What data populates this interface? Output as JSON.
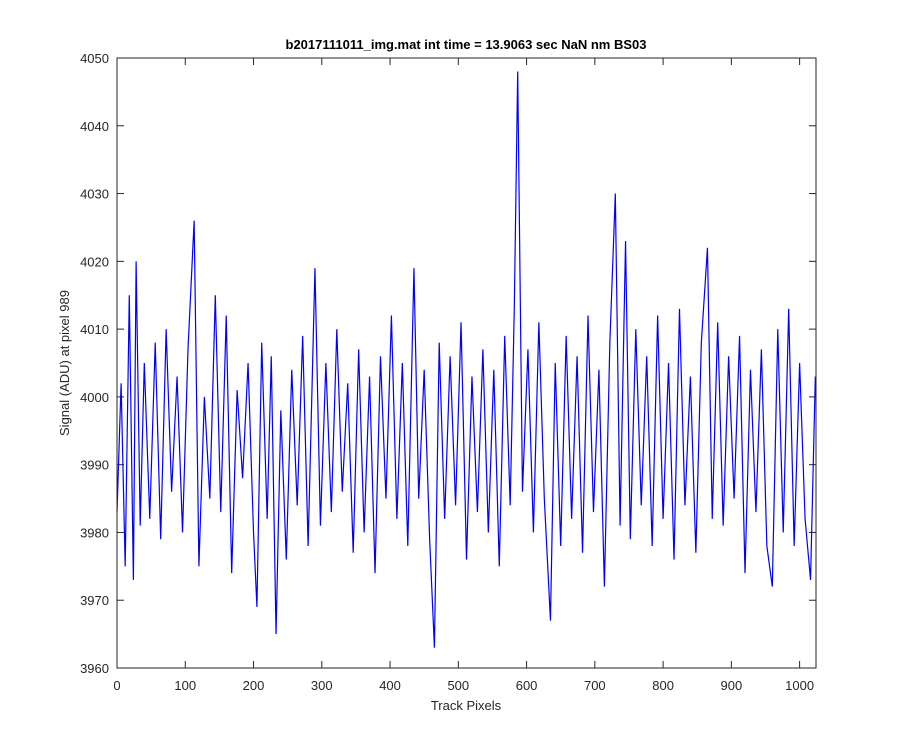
{
  "chart_data": {
    "type": "line",
    "title": "b2017111011_img.mat int time = 13.9063 sec  NaN nm BS03",
    "xlabel": "Track Pixels",
    "ylabel": "Signal (ADU) at pixel 989",
    "xlim": [
      0,
      1024
    ],
    "ylim": [
      3960,
      4050
    ],
    "xticks": [
      0,
      100,
      200,
      300,
      400,
      500,
      600,
      700,
      800,
      900,
      1000
    ],
    "yticks": [
      3960,
      3970,
      3980,
      3990,
      4000,
      4010,
      4020,
      4030,
      4040,
      4050
    ],
    "grid": false,
    "x": [
      0,
      6,
      12,
      18,
      24,
      28,
      34,
      40,
      48,
      56,
      64,
      72,
      80,
      88,
      96,
      104,
      113,
      120,
      128,
      136,
      144,
      152,
      160,
      168,
      176,
      184,
      192,
      200,
      205,
      212,
      220,
      226,
      233,
      240,
      248,
      256,
      264,
      272,
      280,
      290,
      298,
      306,
      314,
      322,
      330,
      338,
      346,
      354,
      362,
      370,
      378,
      386,
      394,
      402,
      410,
      418,
      426,
      435,
      442,
      450,
      458,
      465,
      472,
      480,
      488,
      496,
      504,
      512,
      520,
      528,
      536,
      544,
      552,
      560,
      568,
      576,
      582,
      587,
      594,
      602,
      610,
      618,
      626,
      635,
      642,
      650,
      658,
      666,
      674,
      682,
      690,
      698,
      706,
      714,
      722,
      730,
      737,
      745,
      752,
      760,
      768,
      776,
      784,
      792,
      800,
      808,
      816,
      824,
      832,
      840,
      848,
      856,
      865,
      872,
      880,
      888,
      896,
      904,
      912,
      920,
      928,
      936,
      944,
      952,
      960,
      968,
      976,
      984,
      992,
      1000,
      1008,
      1016,
      1023
    ],
    "series": [
      {
        "name": "signal",
        "color": "#0000ff",
        "values": [
          3983,
          4002,
          3975,
          4015,
          3973,
          4020,
          3981,
          4005,
          3982,
          4008,
          3979,
          4010,
          3986,
          4003,
          3980,
          4007,
          4026,
          3975,
          4000,
          3985,
          4015,
          3983,
          4012,
          3974,
          4001,
          3988,
          4005,
          3980,
          3969,
          4008,
          3982,
          4006,
          3965,
          3998,
          3976,
          4004,
          3984,
          4009,
          3978,
          4019,
          3981,
          4005,
          3983,
          4010,
          3986,
          4002,
          3977,
          4007,
          3980,
          4003,
          3974,
          4006,
          3985,
          4012,
          3982,
          4005,
          3978,
          4019,
          3985,
          4004,
          3979,
          3963,
          4008,
          3982,
          4006,
          3984,
          4011,
          3976,
          4003,
          3983,
          4007,
          3980,
          4004,
          3975,
          4009,
          3984,
          4013,
          4048,
          3986,
          4007,
          3980,
          4011,
          3985,
          3967,
          4005,
          3978,
          4009,
          3982,
          4006,
          3977,
          4012,
          3983,
          4004,
          3972,
          4008,
          4030,
          3981,
          4023,
          3979,
          4010,
          3984,
          4006,
          3978,
          4012,
          3982,
          4005,
          3976,
          4013,
          3984,
          4003,
          3977,
          4008,
          4022,
          3982,
          4011,
          3981,
          4006,
          3985,
          4009,
          3974,
          4004,
          3983,
          4007,
          3978,
          3972,
          4010,
          3980,
          4013,
          3978,
          4005,
          3982,
          3973,
          4003
        ]
      }
    ]
  }
}
